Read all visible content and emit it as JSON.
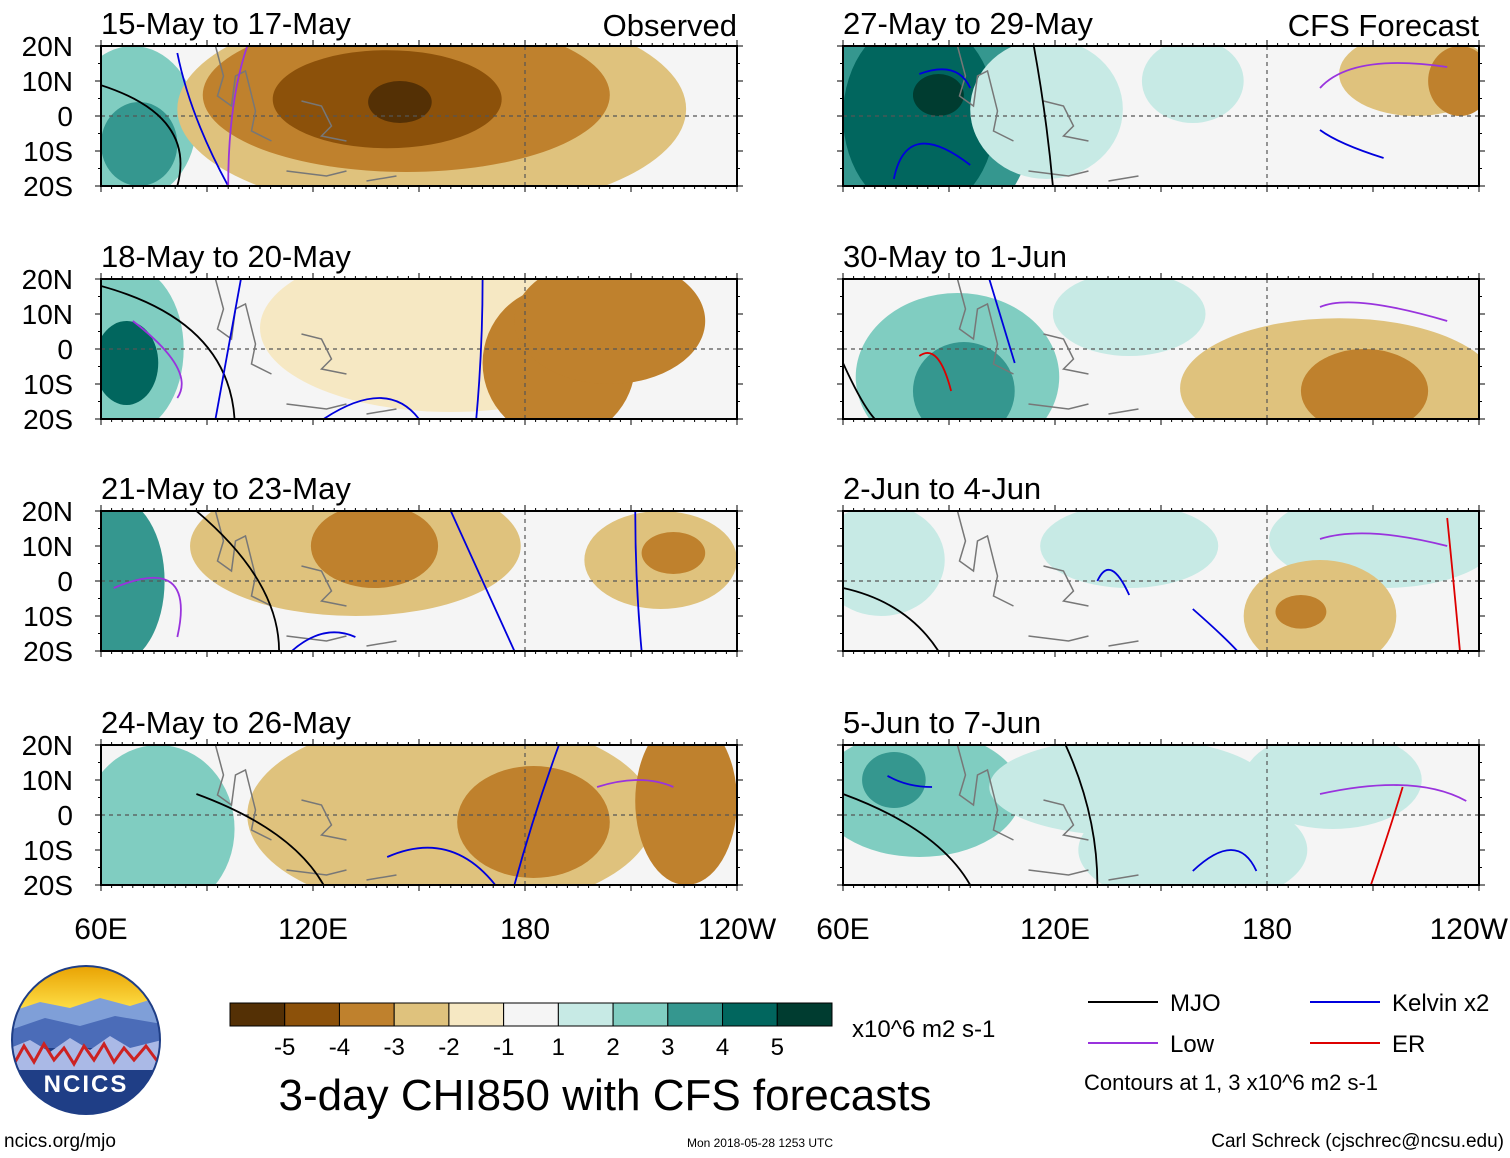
{
  "chart_data": {
    "type": "heatmap",
    "title": "3-day CHI850 with CFS forecasts",
    "x_ticks": [
      "60E",
      "120E",
      "180",
      "120W"
    ],
    "y_ticks": [
      "20N",
      "10N",
      "0",
      "10S",
      "20S"
    ],
    "colorbar": {
      "units": "x10^6 m2 s-1",
      "labels": [
        "-5",
        "-4",
        "-3",
        "-2",
        "-1",
        "1",
        "2",
        "3",
        "4",
        "5"
      ],
      "colors": [
        "#543005",
        "#8c510a",
        "#bf812d",
        "#dfc27d",
        "#f6e8c3",
        "#f5f5f5",
        "#c7eae5",
        "#80cdc1",
        "#35978f",
        "#01665e",
        "#003c30"
      ]
    },
    "observed_label": "Observed",
    "forecast_label": "CFS Forecast",
    "panels_observed": [
      {
        "title": "15-May to 17-May"
      },
      {
        "title": "18-May to 20-May"
      },
      {
        "title": "21-May to 23-May"
      },
      {
        "title": "24-May to 26-May"
      }
    ],
    "panels_forecast": [
      {
        "title": "27-May to 29-May"
      },
      {
        "title": "30-May to 1-Jun"
      },
      {
        "title": "2-Jun to 4-Jun"
      },
      {
        "title": "5-Jun to 7-Jun"
      }
    ],
    "legend": [
      {
        "label": "MJO",
        "color": "#000000"
      },
      {
        "label": "Kelvin x2",
        "color": "#0000dd"
      },
      {
        "label": "Low",
        "color": "#9933dd"
      },
      {
        "label": "ER",
        "color": "#dd0000"
      }
    ],
    "contour_note": "Contours at 1, 3 x10^6 m2 s-1"
  },
  "logo": {
    "text": "NCICS"
  },
  "footer": {
    "url": "ncics.org/mjo",
    "timestamp": "Mon 2018-05-28 1253 UTC",
    "credit": "Carl Schreck (cjschrec@ncsu.edu)"
  }
}
